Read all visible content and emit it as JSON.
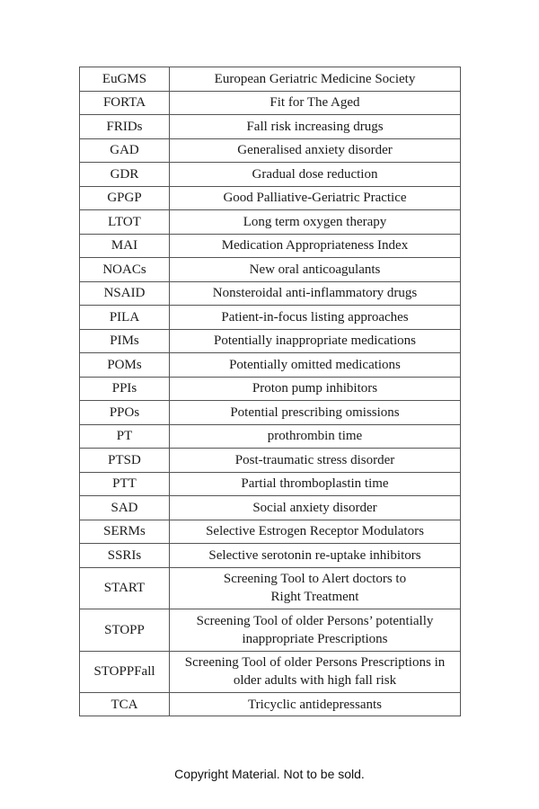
{
  "abbreviations": [
    {
      "abbr": "EuGMS",
      "meaning": [
        "European Geriatric Medicine Society"
      ]
    },
    {
      "abbr": "FORTA",
      "meaning": [
        "Fit for The Aged"
      ]
    },
    {
      "abbr": "FRIDs",
      "meaning": [
        "Fall risk increasing drugs"
      ]
    },
    {
      "abbr": "GAD",
      "meaning": [
        "Generalised anxiety disorder"
      ]
    },
    {
      "abbr": "GDR",
      "meaning": [
        "Gradual dose reduction"
      ]
    },
    {
      "abbr": "GPGP",
      "meaning": [
        "Good Palliative-Geriatric Practice"
      ]
    },
    {
      "abbr": "LTOT",
      "meaning": [
        "Long term oxygen therapy"
      ]
    },
    {
      "abbr": "MAI",
      "meaning": [
        "Medication Appropriateness Index"
      ]
    },
    {
      "abbr": "NOACs",
      "meaning": [
        "New oral anticoagulants"
      ]
    },
    {
      "abbr": "NSAID",
      "meaning": [
        "Nonsteroidal anti-inflammatory drugs"
      ]
    },
    {
      "abbr": "PILA",
      "meaning": [
        "Patient-in-focus listing approaches"
      ]
    },
    {
      "abbr": "PIMs",
      "meaning": [
        "Potentially inappropriate medications"
      ]
    },
    {
      "abbr": "POMs",
      "meaning": [
        "Potentially omitted medications"
      ]
    },
    {
      "abbr": "PPIs",
      "meaning": [
        "Proton pump inhibitors"
      ]
    },
    {
      "abbr": "PPOs",
      "meaning": [
        "Potential prescribing omissions"
      ]
    },
    {
      "abbr": "PT",
      "meaning": [
        "prothrombin time"
      ]
    },
    {
      "abbr": "PTSD",
      "meaning": [
        "Post-traumatic stress disorder"
      ]
    },
    {
      "abbr": "PTT",
      "meaning": [
        "Partial thromboplastin time"
      ]
    },
    {
      "abbr": "SAD",
      "meaning": [
        "Social anxiety disorder"
      ]
    },
    {
      "abbr": "SERMs",
      "meaning": [
        "Selective Estrogen Receptor Modulators"
      ]
    },
    {
      "abbr": "SSRIs",
      "meaning": [
        "Selective serotonin re-uptake inhibitors"
      ]
    },
    {
      "abbr": "START",
      "meaning": [
        "Screening Tool to Alert doctors to",
        "Right Treatment"
      ]
    },
    {
      "abbr": "STOPP",
      "meaning": [
        "Screening Tool of older Persons’ potentially",
        "inappropriate Prescriptions"
      ]
    },
    {
      "abbr": "STOPPFall",
      "meaning": [
        "Screening Tool of older Persons Prescriptions in",
        "older adults with high fall risk"
      ]
    },
    {
      "abbr": "TCA",
      "meaning": [
        "Tricyclic antidepressants"
      ]
    }
  ],
  "footer": {
    "copyright": "Copyright Material. Not to be sold."
  }
}
